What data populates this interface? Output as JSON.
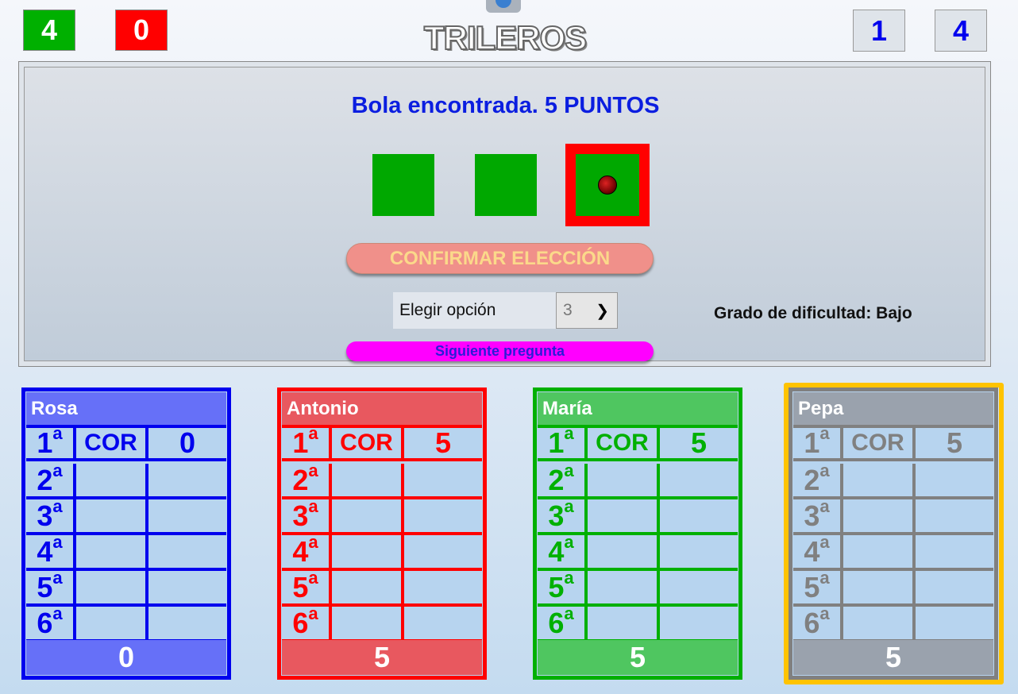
{
  "header": {
    "title": "TRILEROS",
    "correct_count": "4",
    "wrong_count": "0",
    "question_number": "1",
    "players_count": "4"
  },
  "game": {
    "message": "Bola encontrada. 5 PUNTOS",
    "selected_cup": 3,
    "confirm_label": "CONFIRMAR ELECCIÓN",
    "select_label": "Elegir opción",
    "select_value": "3",
    "difficulty": "Grado de dificultad: Bajo",
    "next_label": "Siguiente pregunta"
  },
  "colors": {
    "correct": "#00b000",
    "wrong": "#ff0000",
    "cup": "#00a800",
    "highlight": "#ff0000",
    "active_player": "#ffc300"
  },
  "players": [
    {
      "name": "Rosa",
      "color": "#0000ee",
      "light": "#6670f8",
      "rounds": [
        [
          "1ª",
          "COR",
          "0"
        ],
        [
          "2ª",
          "",
          ""
        ],
        [
          "3ª",
          "",
          ""
        ],
        [
          "4ª",
          "",
          ""
        ],
        [
          "5ª",
          "",
          ""
        ],
        [
          "6ª",
          "",
          ""
        ]
      ],
      "total": "0"
    },
    {
      "name": "Antonio",
      "color": "#ff0000",
      "light": "#e8585f",
      "rounds": [
        [
          "1ª",
          "COR",
          "5"
        ],
        [
          "2ª",
          "",
          ""
        ],
        [
          "3ª",
          "",
          ""
        ],
        [
          "4ª",
          "",
          ""
        ],
        [
          "5ª",
          "",
          ""
        ],
        [
          "6ª",
          "",
          ""
        ]
      ],
      "total": "5"
    },
    {
      "name": "María",
      "color": "#00b000",
      "light": "#4fc660",
      "rounds": [
        [
          "1ª",
          "COR",
          "5"
        ],
        [
          "2ª",
          "",
          ""
        ],
        [
          "3ª",
          "",
          ""
        ],
        [
          "4ª",
          "",
          ""
        ],
        [
          "5ª",
          "",
          ""
        ],
        [
          "6ª",
          "",
          ""
        ]
      ],
      "total": "5"
    },
    {
      "name": "Pepa",
      "color": "#808080",
      "light": "#9aa2ad",
      "rounds": [
        [
          "1ª",
          "COR",
          "5"
        ],
        [
          "2ª",
          "",
          ""
        ],
        [
          "3ª",
          "",
          ""
        ],
        [
          "4ª",
          "",
          ""
        ],
        [
          "5ª",
          "",
          ""
        ],
        [
          "6ª",
          "",
          ""
        ]
      ],
      "total": "5"
    }
  ]
}
